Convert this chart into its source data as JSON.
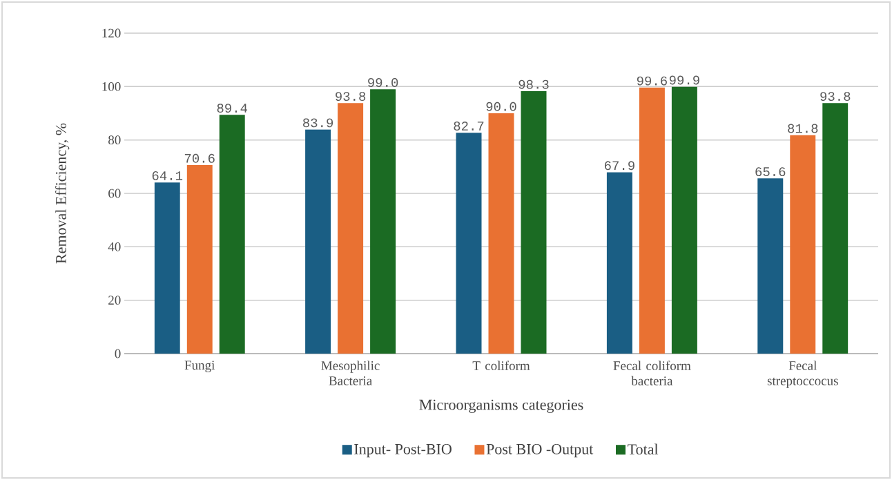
{
  "chart_data": {
    "type": "bar",
    "xlabel": "Microorganisms categories",
    "ylabel": "Removal Efficiency, %",
    "categories": [
      "Fungi",
      "Mesophilic Bacteria",
      "T coliform",
      "Fecal coliform bacteria",
      "Fecal streptoccocus"
    ],
    "series": [
      {
        "name": "Input- Post-BIO",
        "color": "#1a5e84",
        "values": [
          64.1,
          83.9,
          82.7,
          67.9,
          65.6
        ],
        "value_labels": [
          "64.1",
          "83.9",
          "82.7",
          "67.9",
          "65.6"
        ]
      },
      {
        "name": "Post BIO -Output",
        "color": "#e97132",
        "values": [
          70.6,
          93.8,
          90.0,
          99.6,
          81.8
        ],
        "value_labels": [
          "70.6",
          "93.8",
          "90.0",
          "99.6",
          "81.8"
        ]
      },
      {
        "name": "Total",
        "color": "#1b6b23",
        "values": [
          89.4,
          99.0,
          98.3,
          99.9,
          93.8
        ],
        "value_labels": [
          "89.4",
          "99.0",
          "98.3",
          "99.9",
          "93.8"
        ]
      }
    ],
    "ylim": [
      0,
      120
    ],
    "yticks": [
      0,
      20,
      40,
      60,
      80,
      100,
      120
    ],
    "grid": "y",
    "legend": "bottom"
  }
}
